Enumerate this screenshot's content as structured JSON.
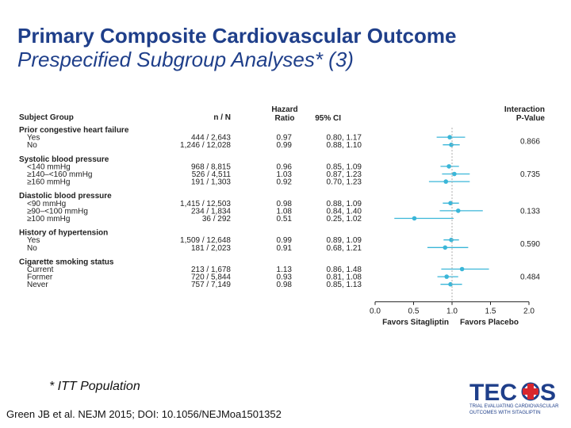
{
  "title": {
    "line1": "Primary Composite Cardiovascular Outcome",
    "line2": "Prespecified Subgroup Analyses* (3)"
  },
  "chart_data": {
    "type": "forest",
    "columns": {
      "subject_group": "Subject Group",
      "nn": "n / N",
      "hr_line1": "Hazard",
      "hr_line2": "Ratio",
      "ci": "95% CI",
      "pval_line1": "Interaction",
      "pval_line2": "P-Value"
    },
    "groups": [
      {
        "name": "Prior congestive heart failure",
        "p_value": "0.866",
        "rows": [
          {
            "label": "Yes",
            "nn": "444 / 2,643",
            "hr": 0.97,
            "hr_text": "0.97",
            "lo": 0.8,
            "hi": 1.17,
            "ci_text": "0.80, 1.17"
          },
          {
            "label": "No",
            "nn": "1,246 / 12,028",
            "hr": 0.99,
            "hr_text": "0.99",
            "lo": 0.88,
            "hi": 1.1,
            "ci_text": "0.88, 1.10"
          }
        ]
      },
      {
        "name": "Systolic blood pressure",
        "p_value": "0.735",
        "rows": [
          {
            "label": "<140 mmHg",
            "nn": "968 / 8,815",
            "hr": 0.96,
            "hr_text": "0.96",
            "lo": 0.85,
            "hi": 1.09,
            "ci_text": "0.85, 1.09"
          },
          {
            "label": "≥140–<160 mmHg",
            "nn": "526 / 4,511",
            "hr": 1.03,
            "hr_text": "1.03",
            "lo": 0.87,
            "hi": 1.23,
            "ci_text": "0.87, 1.23"
          },
          {
            "label": "≥160 mmHg",
            "nn": "191 / 1,303",
            "hr": 0.92,
            "hr_text": "0.92",
            "lo": 0.7,
            "hi": 1.23,
            "ci_text": "0.70, 1.23"
          }
        ]
      },
      {
        "name": "Diastolic blood pressure",
        "p_value": "0.133",
        "rows": [
          {
            "label": "<90 mmHg",
            "nn": "1,415 / 12,503",
            "hr": 0.98,
            "hr_text": "0.98",
            "lo": 0.88,
            "hi": 1.09,
            "ci_text": "0.88, 1.09"
          },
          {
            "label": "≥90–<100 mmHg",
            "nn": "234 / 1,834",
            "hr": 1.08,
            "hr_text": "1.08",
            "lo": 0.84,
            "hi": 1.4,
            "ci_text": "0.84, 1.40"
          },
          {
            "label": "≥100 mmHg",
            "nn": "36 / 292",
            "hr": 0.51,
            "hr_text": "0.51",
            "lo": 0.25,
            "hi": 1.02,
            "ci_text": "0.25, 1.02"
          }
        ]
      },
      {
        "name": "History of hypertension",
        "p_value": "0.590",
        "rows": [
          {
            "label": "Yes",
            "nn": "1,509 / 12,648",
            "hr": 0.99,
            "hr_text": "0.99",
            "lo": 0.89,
            "hi": 1.09,
            "ci_text": "0.89, 1.09"
          },
          {
            "label": "No",
            "nn": "181 / 2,023",
            "hr": 0.91,
            "hr_text": "0.91",
            "lo": 0.68,
            "hi": 1.21,
            "ci_text": "0.68, 1.21"
          }
        ]
      },
      {
        "name": "Cigarette smoking status",
        "p_value": "0.484",
        "rows": [
          {
            "label": "Current",
            "nn": "213 / 1,678",
            "hr": 1.13,
            "hr_text": "1.13",
            "lo": 0.86,
            "hi": 1.48,
            "ci_text": "0.86, 1.48"
          },
          {
            "label": "Former",
            "nn": "720 / 5,844",
            "hr": 0.93,
            "hr_text": "0.93",
            "lo": 0.81,
            "hi": 1.08,
            "ci_text": "0.81, 1.08"
          },
          {
            "label": "Never",
            "nn": "757 / 7,149",
            "hr": 0.98,
            "hr_text": "0.98",
            "lo": 0.85,
            "hi": 1.13,
            "ci_text": "0.85, 1.13"
          }
        ]
      }
    ],
    "x_axis": {
      "min": 0,
      "max": 2,
      "ticks": [
        "0.0",
        "0.5",
        "1.0",
        "1.5",
        "2.0"
      ],
      "reference_line": 1.0,
      "label_left": "Favors Sitagliptin",
      "label_right": "Favors Placebo"
    },
    "colors": {
      "marker": "#3ab6d8",
      "text": "#222222",
      "reference": "#aaaaaa"
    }
  },
  "footnote": "* ITT Population",
  "citation": "Green JB et al. NEJM 2015; DOI: 10.1056/NEJMoa1501352",
  "logo": {
    "text_left": "TEC",
    "text_right": "S",
    "tagline_1": "TRIAL EVALUATING CARDIOVASCULAR",
    "tagline_2": "OUTCOMES WITH SITAGLIPTIN"
  }
}
